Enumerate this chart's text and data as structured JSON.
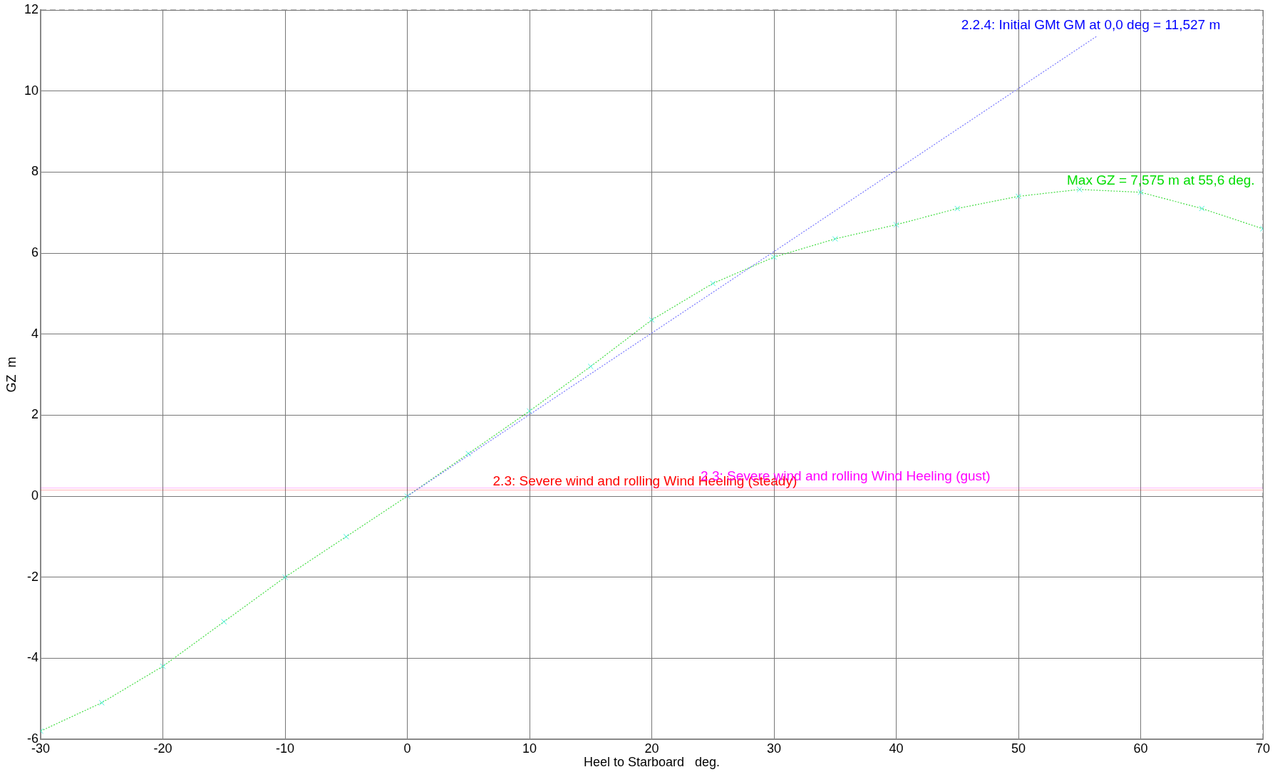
{
  "chart_data": {
    "type": "line",
    "xlabel": "Heel to Starboard   deg.",
    "ylabel": "GZ  m",
    "xlim": [
      -30,
      70
    ],
    "xticks": [
      -30,
      -20,
      -10,
      0,
      10,
      20,
      30,
      40,
      50,
      60,
      70
    ],
    "ylim": [
      -6,
      12
    ],
    "yticks": [
      -6,
      -4,
      -2,
      0,
      2,
      4,
      6,
      8,
      10,
      12
    ],
    "grid": true,
    "legend": false,
    "marker": "cross",
    "line_style": "dotted",
    "series": [
      {
        "x": [
          -30,
          -25,
          -20,
          -15,
          -10,
          -5,
          0,
          5,
          10,
          15,
          20,
          25,
          30,
          35,
          40,
          45,
          50,
          55,
          60,
          65,
          70
        ],
        "values": [
          -5.8,
          -5.1,
          -4.2,
          -3.1,
          -2.0,
          -1.0,
          0,
          1.05,
          2.1,
          3.2,
          4.35,
          5.25,
          5.9,
          6.35,
          6.7,
          7.1,
          7.4,
          7.57,
          7.5,
          7.1,
          6.6
        ],
        "color": "#44dd44"
      },
      {
        "x": [
          0,
          56.4
        ],
        "values": [
          0,
          11.35
        ],
        "color": "#7777ff",
        "marker": "none"
      }
    ],
    "ref_lines": [
      {
        "axis": "y",
        "value": 0.15,
        "label": "2.3: Severe wind and rolling Wind Heeling (steady)",
        "color": "#ff0000"
      },
      {
        "axis": "y",
        "value": 0.2,
        "label": "2.3: Severe wind and rolling Wind Heeling (gust)",
        "color": "#ff00ff"
      }
    ],
    "annotations": [
      {
        "text": "2.2.4: Initial GMt GM at 0,0 deg = 11,527 m",
        "x": 56.4,
        "y": 11.35
      },
      {
        "text": "Max GZ = 7,575 m at 55,6 deg.",
        "x": 55.6,
        "y": 7.575
      }
    ]
  }
}
